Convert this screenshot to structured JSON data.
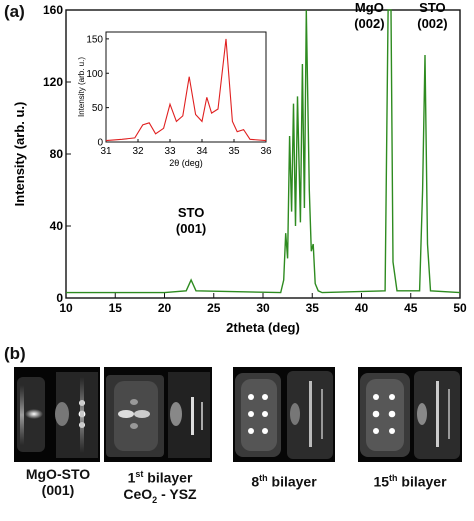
{
  "panel_a_label": "(a)",
  "panel_b_label": "(b)",
  "chart_data": [
    {
      "type": "line",
      "title": "",
      "xlabel": "2theta (deg)",
      "ylabel": "Intensity (arb. u.)",
      "xlim": [
        10,
        50
      ],
      "ylim": [
        0,
        160
      ],
      "xticks": [
        10,
        15,
        20,
        25,
        30,
        35,
        40,
        45,
        50
      ],
      "yticks": [
        0,
        40,
        80,
        120,
        160
      ],
      "color": "#2e8b20",
      "grid": false,
      "series": [
        {
          "x": [
            10,
            20,
            22.2,
            22.7,
            23.2,
            31.8,
            32.1,
            32.3,
            32.5,
            32.7,
            32.9,
            33.1,
            33.3,
            33.5,
            33.8,
            34.0,
            34.2,
            34.4,
            34.7,
            34.9,
            35.1,
            35.3,
            35.6,
            36.0,
            42.4,
            42.7,
            42.85,
            43.0,
            43.2,
            43.6,
            45.9,
            46.2,
            46.45,
            46.7,
            47.0,
            50
          ],
          "y": [
            3,
            3,
            4,
            10,
            4,
            3,
            10,
            36,
            22,
            90,
            48,
            108,
            40,
            112,
            42,
            130,
            50,
            160,
            60,
            26,
            30,
            8,
            4,
            3,
            4,
            160,
            160,
            160,
            20,
            4,
            4,
            60,
            135,
            30,
            4,
            3
          ]
        }
      ],
      "annotations": [
        {
          "line1": "STO",
          "line2": "(001)"
        },
        {
          "line1": "MgO",
          "line2": "(002)"
        },
        {
          "line1": "STO",
          "line2": "(002)"
        }
      ]
    },
    {
      "type": "line",
      "title": "",
      "xlabel": "2θ (deg)",
      "ylabel": "Intensity (arb. u.)",
      "xlim": [
        31,
        36
      ],
      "ylim": [
        0,
        160
      ],
      "xticks": [
        31,
        32,
        33,
        34,
        35,
        36
      ],
      "yticks": [
        0,
        50,
        100,
        150
      ],
      "color": "#e02020",
      "grid": false,
      "series": [
        {
          "x": [
            31.0,
            31.5,
            31.9,
            32.15,
            32.35,
            32.55,
            32.8,
            33.0,
            33.2,
            33.4,
            33.6,
            33.8,
            34.0,
            34.15,
            34.3,
            34.5,
            34.75,
            34.95,
            35.1,
            35.3,
            35.5,
            36.0
          ],
          "y": [
            2,
            4,
            6,
            25,
            28,
            12,
            20,
            55,
            30,
            38,
            95,
            40,
            30,
            65,
            42,
            48,
            150,
            30,
            15,
            18,
            4,
            2
          ]
        }
      ]
    }
  ],
  "rheed_captions": [
    {
      "line1": "MgO-STO",
      "line2": "(001)"
    },
    {
      "ordinal": "1",
      "sup": "st",
      "rest": " bilayer",
      "line2a": "CeO",
      "sub": "2",
      "line2b": " - YSZ"
    },
    {
      "ordinal": "8",
      "sup": "th",
      "rest": " bilayer"
    },
    {
      "ordinal": "15",
      "sup": "th",
      "rest": " bilayer"
    }
  ]
}
